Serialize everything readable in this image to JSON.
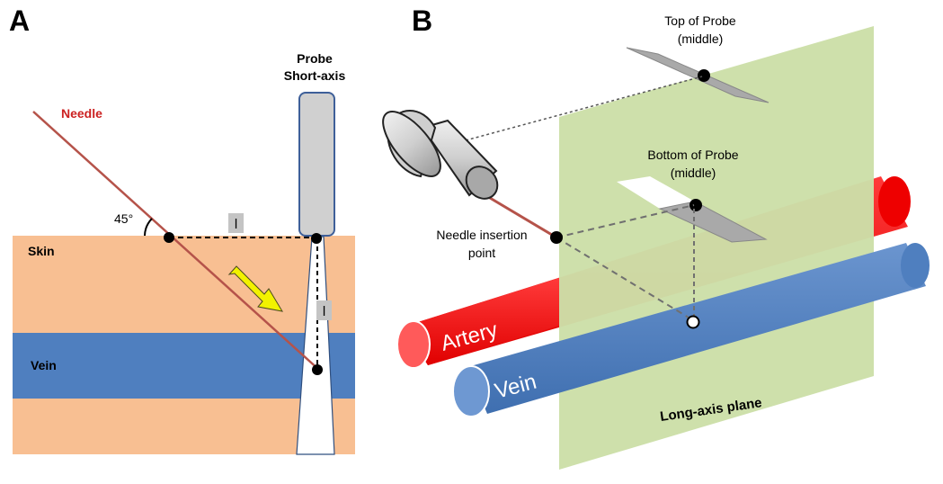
{
  "panel_a": {
    "letter": "A",
    "probe_label_line1": "Probe",
    "probe_label_line2": "Short-axis",
    "needle_label": "Needle",
    "angle_label": "45°",
    "length_marker_h": "l",
    "length_marker_v": "l",
    "skin_label": "Skin",
    "vein_label": "Vein"
  },
  "panel_b": {
    "letter": "B",
    "top_probe_line1": "Top of Probe",
    "top_probe_line2": "(middle)",
    "bottom_probe_line1": "Bottom of Probe",
    "bottom_probe_line2": "(middle)",
    "insertion_line1": "Needle insertion",
    "insertion_line2": "point",
    "artery_label": "Artery",
    "vein_label": "Vein",
    "plane_label": "Long-axis plane"
  },
  "colors": {
    "skin": "#F8BF92",
    "vein": "#4F7FBF",
    "artery": "#F00000",
    "needle": "#B5534A",
    "needle_label": "#CC2222",
    "probe_fill": "#D0D0D0",
    "probe_stroke": "#3E5F99",
    "arrow": "#F2F200",
    "plane": "#CCDFA8"
  }
}
